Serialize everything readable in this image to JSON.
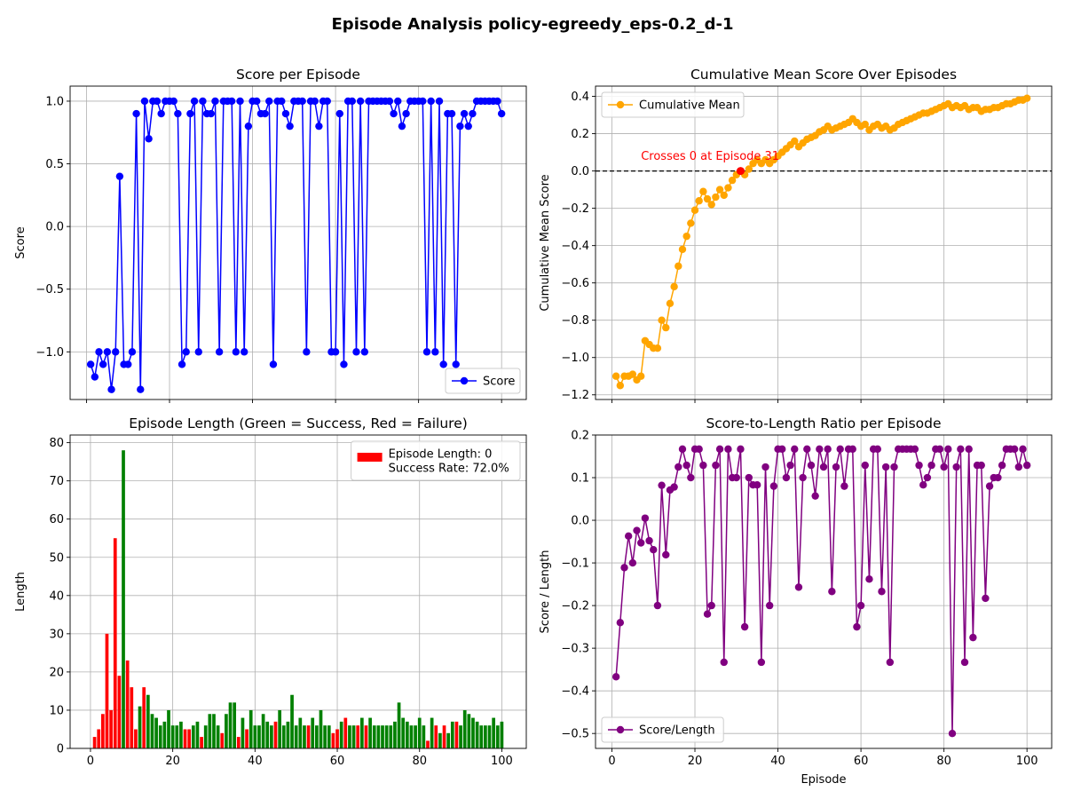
{
  "figure": {
    "title": "Episode Analysis policy-egreedy_eps-0.2_d-1"
  },
  "chart_data": [
    {
      "type": "line",
      "title": "Score per Episode",
      "xlabel": "",
      "ylabel": "Score",
      "xlim": [
        -3.95,
        105.95
      ],
      "ylim": [
        -1.38,
        1.12
      ],
      "xticks": [
        0,
        20,
        40,
        60,
        80,
        100
      ],
      "xtick_labels": false,
      "yticks": [
        -1.0,
        -0.5,
        0.0,
        0.5,
        1.0
      ],
      "ytick_labels": [
        "−1.0",
        "−0.5",
        "0.0",
        "0.5",
        "1.0"
      ],
      "grid": true,
      "legend": {
        "placement": "lower-right",
        "entries": [
          {
            "label": "Score",
            "color": "#0000ff",
            "marker": "circle",
            "line": true
          }
        ]
      },
      "series": [
        {
          "name": "Score",
          "color": "#0000ff",
          "x": [
            1,
            2,
            3,
            4,
            5,
            6,
            7,
            8,
            9,
            10,
            11,
            12,
            13,
            14,
            15,
            16,
            17,
            18,
            19,
            20,
            21,
            22,
            23,
            24,
            25,
            26,
            27,
            28,
            29,
            30,
            31,
            32,
            33,
            34,
            35,
            36,
            37,
            38,
            39,
            40,
            41,
            42,
            43,
            44,
            45,
            46,
            47,
            48,
            49,
            50,
            51,
            52,
            53,
            54,
            55,
            56,
            57,
            58,
            59,
            60,
            61,
            62,
            63,
            64,
            65,
            66,
            67,
            68,
            69,
            70,
            71,
            72,
            73,
            74,
            75,
            76,
            77,
            78,
            79,
            80,
            81,
            82,
            83,
            84,
            85,
            86,
            87,
            88,
            89,
            90,
            91,
            92,
            93,
            94,
            95,
            96,
            97,
            98,
            99,
            100
          ],
          "y": [
            -1.1,
            -1.2,
            -1.0,
            -1.1,
            -1.0,
            -1.3,
            -1.0,
            0.4,
            -1.1,
            -1.1,
            -1.0,
            0.9,
            -1.3,
            1.0,
            0.7,
            1.0,
            1.0,
            0.9,
            1.0,
            1.0,
            1.0,
            0.9,
            -1.1,
            -1.0,
            0.9,
            1.0,
            -1.0,
            1.0,
            0.9,
            0.9,
            1.0,
            -1.0,
            1.0,
            1.0,
            1.0,
            -1.0,
            1.0,
            -1.0,
            0.8,
            1.0,
            1.0,
            0.9,
            0.9,
            1.0,
            -1.1,
            1.0,
            1.0,
            0.9,
            0.8,
            1.0,
            1.0,
            1.0,
            -1.0,
            1.0,
            1.0,
            0.8,
            1.0,
            1.0,
            -1.0,
            -1.0,
            0.9,
            -1.1,
            1.0,
            1.0,
            -1.0,
            1.0,
            -1.0,
            1.0,
            1.0,
            1.0,
            1.0,
            1.0,
            1.0,
            0.9,
            1.0,
            0.8,
            0.9,
            1.0,
            1.0,
            1.0,
            1.0,
            -1.0,
            1.0,
            -1.0,
            1.0,
            -1.1,
            0.9,
            0.9,
            -1.1,
            0.8,
            0.9,
            0.8,
            0.9,
            1.0,
            1.0,
            1.0,
            1.0,
            1.0,
            1.0,
            0.9
          ]
        }
      ]
    },
    {
      "type": "line",
      "title": "Cumulative Mean Score Over Episodes",
      "xlabel": "",
      "ylabel": "Cumulative Mean Score",
      "xlim": [
        -3.95,
        105.95
      ],
      "ylim": [
        -1.225,
        0.455
      ],
      "xticks": [
        0,
        20,
        40,
        60,
        80,
        100
      ],
      "xtick_labels": false,
      "yticks": [
        -1.2,
        -1.0,
        -0.8,
        -0.6,
        -0.4,
        -0.2,
        0.0,
        0.2,
        0.4
      ],
      "ytick_labels": [
        "−1.2",
        "−1.0",
        "−0.8",
        "−0.6",
        "−0.4",
        "−0.2",
        "0.0",
        "0.2",
        "0.4"
      ],
      "grid": true,
      "hline": {
        "y": 0,
        "style": "dashed",
        "color": "#000000"
      },
      "highlight": {
        "x": 31,
        "y": 0.0,
        "color": "#ff0000"
      },
      "annotation": {
        "text": "Crosses 0 at Episode 31",
        "x": 7,
        "y": 0.06,
        "color": "#ff0000"
      },
      "legend": {
        "placement": "upper-left",
        "entries": [
          {
            "label": "Cumulative Mean",
            "color": "#ffa500",
            "marker": "circle",
            "line": true
          }
        ]
      },
      "series": [
        {
          "name": "Cumulative Mean",
          "color": "#ffa500",
          "x": [
            1,
            2,
            3,
            4,
            5,
            6,
            7,
            8,
            9,
            10,
            11,
            12,
            13,
            14,
            15,
            16,
            17,
            18,
            19,
            20,
            21,
            22,
            23,
            24,
            25,
            26,
            27,
            28,
            29,
            30,
            31,
            32,
            33,
            34,
            35,
            36,
            37,
            38,
            39,
            40,
            41,
            42,
            43,
            44,
            45,
            46,
            47,
            48,
            49,
            50,
            51,
            52,
            53,
            54,
            55,
            56,
            57,
            58,
            59,
            60,
            61,
            62,
            63,
            64,
            65,
            66,
            67,
            68,
            69,
            70,
            71,
            72,
            73,
            74,
            75,
            76,
            77,
            78,
            79,
            80,
            81,
            82,
            83,
            84,
            85,
            86,
            87,
            88,
            89,
            90,
            91,
            92,
            93,
            94,
            95,
            96,
            97,
            98,
            99,
            100
          ],
          "y": [
            -1.1,
            -1.15,
            -1.1,
            -1.1,
            -1.09,
            -1.12,
            -1.1,
            -0.91,
            -0.93,
            -0.95,
            -0.95,
            -0.8,
            -0.84,
            -0.71,
            -0.62,
            -0.51,
            -0.42,
            -0.35,
            -0.28,
            -0.21,
            -0.16,
            -0.11,
            -0.15,
            -0.18,
            -0.14,
            -0.1,
            -0.13,
            -0.09,
            -0.05,
            -0.02,
            0.0,
            -0.02,
            0.01,
            0.04,
            0.06,
            0.04,
            0.06,
            0.04,
            0.06,
            0.08,
            0.1,
            0.12,
            0.14,
            0.16,
            0.13,
            0.15,
            0.17,
            0.18,
            0.19,
            0.21,
            0.22,
            0.24,
            0.22,
            0.23,
            0.24,
            0.25,
            0.26,
            0.28,
            0.26,
            0.24,
            0.25,
            0.22,
            0.24,
            0.25,
            0.23,
            0.24,
            0.22,
            0.23,
            0.25,
            0.26,
            0.27,
            0.28,
            0.29,
            0.3,
            0.31,
            0.31,
            0.32,
            0.33,
            0.34,
            0.35,
            0.36,
            0.34,
            0.35,
            0.34,
            0.35,
            0.33,
            0.34,
            0.34,
            0.32,
            0.33,
            0.33,
            0.34,
            0.34,
            0.35,
            0.36,
            0.36,
            0.37,
            0.38,
            0.38,
            0.39
          ]
        }
      ]
    },
    {
      "type": "bar",
      "title": "Episode Length (Green = Success, Red = Failure)",
      "xlabel": "",
      "ylabel": "Length",
      "xlim": [
        -4.95,
        105.95
      ],
      "ylim": [
        0,
        82
      ],
      "xticks": [
        0,
        20,
        40,
        60,
        80,
        100
      ],
      "xtick_labels": [
        "0",
        "20",
        "40",
        "60",
        "80",
        "100"
      ],
      "yticks": [
        0,
        10,
        20,
        30,
        40,
        50,
        60,
        70,
        80
      ],
      "ytick_labels": [
        "0",
        "10",
        "20",
        "30",
        "40",
        "50",
        "60",
        "70",
        "80"
      ],
      "grid": true,
      "success_color": "#008000",
      "failure_color": "#ff0000",
      "legend": {
        "placement": "upper-right",
        "entries": [
          {
            "label": "Episode Length: 0",
            "color": "#ff0000",
            "marker": "rect"
          }
        ],
        "extra_text": "Success Rate: 72.0%"
      },
      "x": [
        1,
        2,
        3,
        4,
        5,
        6,
        7,
        8,
        9,
        10,
        11,
        12,
        13,
        14,
        15,
        16,
        17,
        18,
        19,
        20,
        21,
        22,
        23,
        24,
        25,
        26,
        27,
        28,
        29,
        30,
        31,
        32,
        33,
        34,
        35,
        36,
        37,
        38,
        39,
        40,
        41,
        42,
        43,
        44,
        45,
        46,
        47,
        48,
        49,
        50,
        51,
        52,
        53,
        54,
        55,
        56,
        57,
        58,
        59,
        60,
        61,
        62,
        63,
        64,
        65,
        66,
        67,
        68,
        69,
        70,
        71,
        72,
        73,
        74,
        75,
        76,
        77,
        78,
        79,
        80,
        81,
        82,
        83,
        84,
        85,
        86,
        87,
        88,
        89,
        90,
        91,
        92,
        93,
        94,
        95,
        96,
        97,
        98,
        99,
        100
      ],
      "values": [
        3,
        5,
        9,
        30,
        10,
        55,
        19,
        78,
        23,
        16,
        5,
        11,
        16,
        14,
        9,
        8,
        6,
        7,
        10,
        6,
        6,
        7,
        5,
        5,
        6,
        7,
        3,
        6,
        9,
        9,
        6,
        4,
        9,
        12,
        12,
        3,
        8,
        5,
        10,
        6,
        6,
        9,
        7,
        6,
        7,
        10,
        6,
        7,
        14,
        6,
        8,
        6,
        6,
        8,
        6,
        10,
        6,
        6,
        4,
        5,
        7,
        8,
        6,
        6,
        6,
        8,
        6,
        8,
        6,
        6,
        6,
        6,
        6,
        7,
        12,
        8,
        7,
        6,
        6,
        8,
        6,
        2,
        8,
        6,
        4,
        6,
        4,
        7,
        7,
        6,
        10,
        9,
        8,
        7,
        6,
        6,
        6,
        8,
        6,
        7
      ],
      "success": [
        0,
        0,
        0,
        0,
        0,
        0,
        0,
        1,
        0,
        0,
        0,
        1,
        0,
        1,
        1,
        1,
        1,
        1,
        1,
        1,
        1,
        1,
        0,
        0,
        1,
        1,
        0,
        1,
        1,
        1,
        1,
        0,
        1,
        1,
        1,
        0,
        1,
        0,
        1,
        1,
        1,
        1,
        1,
        1,
        0,
        1,
        1,
        1,
        1,
        1,
        1,
        1,
        0,
        1,
        1,
        1,
        1,
        1,
        0,
        0,
        1,
        0,
        1,
        1,
        0,
        1,
        0,
        1,
        1,
        1,
        1,
        1,
        1,
        1,
        1,
        1,
        1,
        1,
        1,
        1,
        1,
        0,
        1,
        0,
        1,
        0,
        1,
        1,
        0,
        1,
        1,
        1,
        1,
        1,
        1,
        1,
        1,
        1,
        1,
        1
      ]
    },
    {
      "type": "line",
      "title": "Score-to-Length Ratio per Episode",
      "xlabel": "Episode",
      "ylabel": "Score / Length",
      "xlim": [
        -3.95,
        105.95
      ],
      "ylim": [
        -0.535,
        0.2
      ],
      "xticks": [
        0,
        20,
        40,
        60,
        80,
        100
      ],
      "xtick_labels": [
        "0",
        "20",
        "40",
        "60",
        "80",
        "100"
      ],
      "yticks": [
        -0.5,
        -0.4,
        -0.3,
        -0.2,
        -0.1,
        0.0,
        0.1,
        0.2
      ],
      "ytick_labels": [
        "−0.5",
        "−0.4",
        "−0.3",
        "−0.2",
        "−0.1",
        "0.0",
        "0.1",
        "0.2"
      ],
      "grid": true,
      "legend": {
        "placement": "lower-left",
        "entries": [
          {
            "label": "Score/Length",
            "color": "#800080",
            "marker": "circle",
            "line": true
          }
        ]
      },
      "series": [
        {
          "name": "Score/Length",
          "color": "#800080",
          "x": [
            1,
            2,
            3,
            4,
            5,
            6,
            7,
            8,
            9,
            10,
            11,
            12,
            13,
            14,
            15,
            16,
            17,
            18,
            19,
            20,
            21,
            22,
            23,
            24,
            25,
            26,
            27,
            28,
            29,
            30,
            31,
            32,
            33,
            34,
            35,
            36,
            37,
            38,
            39,
            40,
            41,
            42,
            43,
            44,
            45,
            46,
            47,
            48,
            49,
            50,
            51,
            52,
            53,
            54,
            55,
            56,
            57,
            58,
            59,
            60,
            61,
            62,
            63,
            64,
            65,
            66,
            67,
            68,
            69,
            70,
            71,
            72,
            73,
            74,
            75,
            76,
            77,
            78,
            79,
            80,
            81,
            82,
            83,
            84,
            85,
            86,
            87,
            88,
            89,
            90,
            91,
            92,
            93,
            94,
            95,
            96,
            97,
            98,
            99,
            100
          ],
          "y": [
            -0.367,
            -0.24,
            -0.111,
            -0.037,
            -0.1,
            -0.024,
            -0.053,
            0.005,
            -0.048,
            -0.069,
            -0.2,
            0.082,
            -0.081,
            0.071,
            0.078,
            0.125,
            0.167,
            0.129,
            0.1,
            0.167,
            0.167,
            0.129,
            -0.22,
            -0.2,
            0.129,
            0.167,
            -0.333,
            0.167,
            0.1,
            0.1,
            0.167,
            -0.25,
            0.1,
            0.083,
            0.083,
            -0.333,
            0.125,
            -0.2,
            0.08,
            0.167,
            0.167,
            0.1,
            0.129,
            0.167,
            -0.157,
            0.1,
            0.167,
            0.129,
            0.057,
            0.167,
            0.125,
            0.167,
            -0.167,
            0.125,
            0.167,
            0.08,
            0.167,
            0.167,
            -0.25,
            -0.2,
            0.129,
            -0.138,
            0.167,
            0.167,
            -0.167,
            0.125,
            -0.333,
            0.125,
            0.167,
            0.167,
            0.167,
            0.167,
            0.167,
            0.129,
            0.083,
            0.1,
            0.129,
            0.167,
            0.167,
            0.125,
            0.167,
            -0.5,
            0.125,
            0.167,
            -0.333,
            0.167,
            -0.275,
            0.129,
            0.129,
            -0.183,
            0.08,
            0.1,
            0.1,
            0.129,
            0.167,
            0.167,
            0.167,
            0.125,
            0.167,
            0.129
          ]
        }
      ]
    }
  ]
}
